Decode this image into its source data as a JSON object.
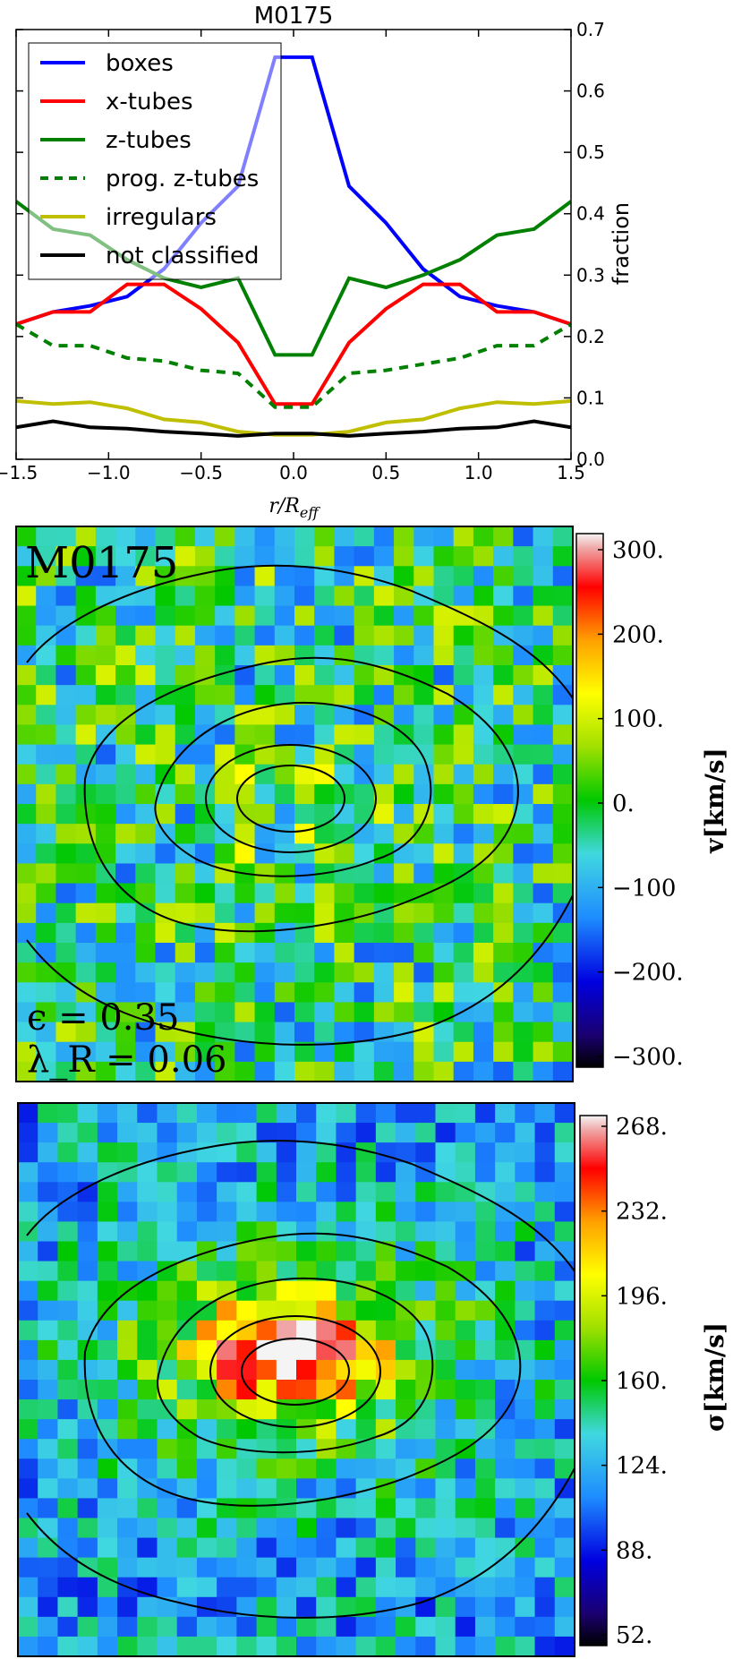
{
  "chart_data": [
    {
      "type": "line",
      "title": "M0175",
      "xlabel": "r/R_eff",
      "ylabel": "fraction",
      "xlim": [
        -1.5,
        1.5
      ],
      "ylim": [
        0.0,
        0.7
      ],
      "xticks": [
        "−1.5",
        "−1.0",
        "−0.5",
        "0.0",
        "0.5",
        "1.0",
        "1.5"
      ],
      "yticks": [
        "0.0",
        "0.1",
        "0.2",
        "0.3",
        "0.4",
        "0.5",
        "0.6",
        "0.7"
      ],
      "yaxis_side": "right",
      "legend_position": "top-left",
      "x": [
        -1.5,
        -1.3,
        -1.1,
        -0.9,
        -0.7,
        -0.5,
        -0.3,
        -0.1,
        0.1,
        0.3,
        0.5,
        0.7,
        0.9,
        1.1,
        1.3,
        1.5
      ],
      "series": [
        {
          "name": "boxes",
          "color": "#0000ff",
          "dash": "solid",
          "values": [
            0.22,
            0.24,
            0.25,
            0.265,
            0.31,
            0.385,
            0.445,
            0.655,
            0.655,
            0.445,
            0.385,
            0.31,
            0.265,
            0.25,
            0.24,
            0.22
          ]
        },
        {
          "name": "x-tubes",
          "color": "#ff0000",
          "dash": "solid",
          "values": [
            0.22,
            0.24,
            0.24,
            0.285,
            0.285,
            0.245,
            0.19,
            0.09,
            0.09,
            0.19,
            0.245,
            0.285,
            0.285,
            0.24,
            0.24,
            0.22
          ]
        },
        {
          "name": "z-tubes",
          "color": "#008000",
          "dash": "solid",
          "values": [
            0.42,
            0.375,
            0.365,
            0.325,
            0.295,
            0.28,
            0.295,
            0.17,
            0.17,
            0.295,
            0.28,
            0.3,
            0.325,
            0.365,
            0.375,
            0.42
          ]
        },
        {
          "name": "prog. z-tubes",
          "color": "#008000",
          "dash": "dashed",
          "values": [
            0.22,
            0.185,
            0.185,
            0.165,
            0.16,
            0.145,
            0.14,
            0.085,
            0.085,
            0.14,
            0.145,
            0.155,
            0.165,
            0.185,
            0.185,
            0.22
          ]
        },
        {
          "name": "irregulars",
          "color": "#bfbf00",
          "dash": "solid",
          "values": [
            0.095,
            0.09,
            0.093,
            0.083,
            0.065,
            0.06,
            0.045,
            0.04,
            0.04,
            0.045,
            0.06,
            0.065,
            0.083,
            0.093,
            0.09,
            0.095
          ]
        },
        {
          "name": "not classified",
          "color": "#000000",
          "dash": "solid",
          "values": [
            0.052,
            0.062,
            0.052,
            0.05,
            0.045,
            0.042,
            0.038,
            0.042,
            0.042,
            0.038,
            0.042,
            0.045,
            0.05,
            0.052,
            0.062,
            0.052
          ]
        }
      ]
    },
    {
      "type": "heatmap",
      "quantity": "velocity",
      "colorbar_label": "v[km/s]",
      "colorbar_ticks": [
        "300.",
        "200.",
        "100.",
        "0.",
        "−100",
        "−200.",
        "−300."
      ],
      "vlim": [
        -300,
        300
      ],
      "annotation_name": "M0175",
      "annotation_ellipticity": "ϵ = 0.35",
      "annotation_lambda": "λ_R = 0.06"
    },
    {
      "type": "heatmap",
      "quantity": "velocity dispersion",
      "colorbar_label": "σ[km/s]",
      "colorbar_ticks": [
        "268.",
        "232.",
        "196.",
        "160.",
        "124.",
        "88.",
        "52."
      ],
      "vlim": [
        52,
        268
      ]
    }
  ]
}
